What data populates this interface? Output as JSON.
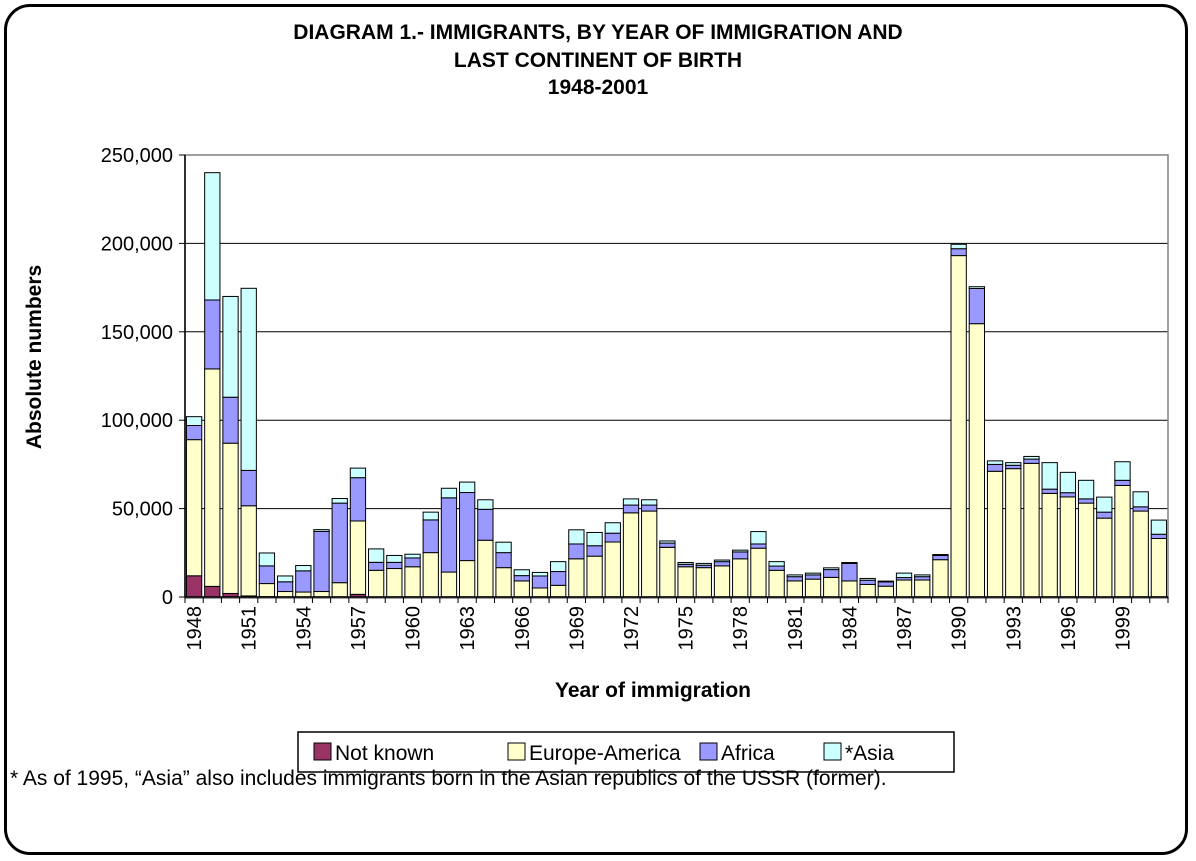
{
  "chart_data": {
    "type": "bar",
    "stacked": true,
    "title": [
      "DIAGRAM 1.- IMMIGRANTS, BY YEAR OF IMMIGRATION AND",
      "LAST CONTINENT OF BIRTH",
      "1948-2001"
    ],
    "xlabel": "Year of immigration",
    "ylabel": "Absolute numbers",
    "ylim": [
      0,
      250000
    ],
    "yticks": [
      0,
      50000,
      100000,
      150000,
      200000,
      250000
    ],
    "ytick_labels": [
      "0",
      "50,000",
      "100,000",
      "150,000",
      "200,000",
      "250,000"
    ],
    "xtick_labels": [
      "1948",
      "1951",
      "1954",
      "1957",
      "1960",
      "1963",
      "1966",
      "1969",
      "1972",
      "1975",
      "1978",
      "1981",
      "1984",
      "1987",
      "1990",
      "1993",
      "1996",
      "1999"
    ],
    "grid": true,
    "legend_position": "bottom",
    "categories": [
      "1948",
      "1949",
      "1950",
      "1951",
      "1952",
      "1953",
      "1954",
      "1955",
      "1956",
      "1957",
      "1958",
      "1959",
      "1960",
      "1961",
      "1962",
      "1963",
      "1964",
      "1965",
      "1966",
      "1967",
      "1968",
      "1969",
      "1970",
      "1971",
      "1972",
      "1973",
      "1974",
      "1975",
      "1976",
      "1977",
      "1978",
      "1979",
      "1980",
      "1981",
      "1982",
      "1983",
      "1984",
      "1985",
      "1986",
      "1987",
      "1988",
      "1989",
      "1990",
      "1991",
      "1992",
      "1993",
      "1994",
      "1995",
      "1996",
      "1997",
      "1998",
      "1999",
      "2000",
      "2001"
    ],
    "series": [
      {
        "name": "Not known",
        "color": "#993366",
        "values": [
          12000,
          6000,
          2000,
          600,
          200,
          100,
          100,
          100,
          100,
          1500,
          100,
          100,
          100,
          100,
          100,
          100,
          100,
          100,
          100,
          100,
          100,
          100,
          100,
          100,
          100,
          100,
          100,
          100,
          100,
          100,
          100,
          100,
          100,
          100,
          100,
          100,
          100,
          100,
          100,
          100,
          100,
          100,
          100,
          100,
          100,
          100,
          100,
          100,
          100,
          100,
          100,
          100,
          100,
          100
        ]
      },
      {
        "name": "Europe-America",
        "color": "#FFFFCC",
        "values": [
          77000,
          123000,
          85000,
          51000,
          7400,
          3000,
          2700,
          3000,
          8000,
          41500,
          15000,
          16000,
          17000,
          25000,
          14000,
          20500,
          32000,
          16500,
          9000,
          5000,
          6500,
          21500,
          23000,
          31000,
          47500,
          48500,
          28000,
          17000,
          16500,
          17500,
          21500,
          27500,
          15000,
          9000,
          10000,
          11000,
          9000,
          7000,
          6000,
          9500,
          9500,
          21000,
          193000,
          154500,
          71000,
          72500,
          75500,
          58500,
          56500,
          53000,
          44500,
          63000,
          48500,
          33000
        ]
      },
      {
        "name": "Africa",
        "color": "#9999FF",
        "values": [
          8000,
          39000,
          26000,
          20000,
          10000,
          5500,
          12000,
          34000,
          45000,
          24500,
          4500,
          3500,
          5000,
          18500,
          42000,
          38500,
          17500,
          8500,
          3000,
          6800,
          7800,
          8400,
          5900,
          5000,
          4400,
          3400,
          2400,
          1400,
          1400,
          2400,
          3900,
          2400,
          2400,
          2400,
          2400,
          4400,
          9900,
          2400,
          2400,
          1400,
          1900,
          2400,
          3900,
          19900,
          3900,
          1900,
          2400,
          2400,
          2400,
          2400,
          3400,
          2900,
          2400,
          2400
        ]
      },
      {
        "name": "*Asia",
        "color": "#CCFFFF",
        "values": [
          5000,
          72000,
          57000,
          103000,
          7300,
          3300,
          3000,
          1000,
          2600,
          5400,
          7600,
          3900,
          2100,
          4400,
          5400,
          5900,
          5400,
          5900,
          3300,
          2000,
          5600,
          8000,
          7500,
          5900,
          3500,
          3000,
          1200,
          1000,
          1000,
          900,
          1000,
          7000,
          2500,
          1000,
          1000,
          1000,
          500,
          1000,
          500,
          2500,
          1000,
          500,
          2500,
          1000,
          2000,
          1500,
          1500,
          15000,
          11500,
          10500,
          8500,
          10500,
          8500,
          8000
        ]
      }
    ]
  },
  "footnote": "*  As of 1995, “Asia” also includes immigrants born in the Asian republics of the USSR (former)."
}
